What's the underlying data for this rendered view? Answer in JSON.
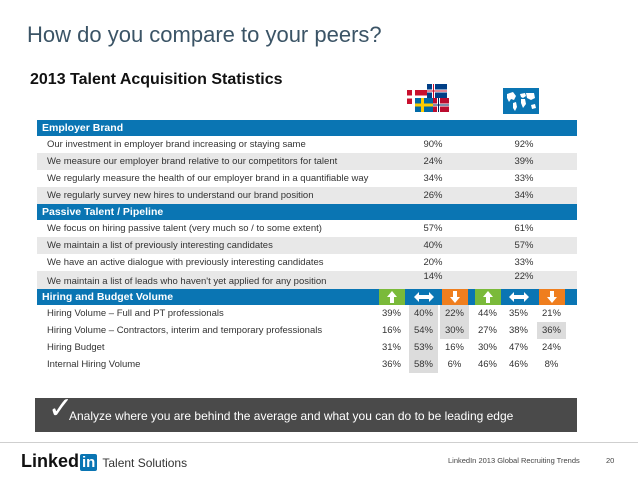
{
  "slide": {
    "title": "How do you compare to your peers?",
    "section_title": "2013 Talent Acquisition Statistics"
  },
  "sections": {
    "employer_brand": {
      "heading": "Employer Brand",
      "rows": [
        {
          "label": "Our investment in employer brand increasing or staying same",
          "nordic": "90%",
          "global": "92%"
        },
        {
          "label": "We measure our employer brand relative to our competitors for talent",
          "nordic": "24%",
          "global": "39%"
        },
        {
          "label": "We regularly measure the health of our employer brand in a quantifiable way",
          "nordic": "34%",
          "global": "33%"
        },
        {
          "label": "We regularly survey new hires to understand our brand position",
          "nordic": "26%",
          "global": "34%"
        }
      ]
    },
    "passive_talent": {
      "heading": "Passive Talent / Pipeline",
      "rows": [
        {
          "label": "We focus on hiring passive talent (very much so / to some extent)",
          "nordic": "57%",
          "global": "61%"
        },
        {
          "label": "We maintain a list of previously interesting candidates",
          "nordic": "40%",
          "global": "57%"
        },
        {
          "label": "We have an active dialogue with previously interesting candidates",
          "nordic": "20%",
          "global": "33%"
        },
        {
          "label": "We maintain a list of leads who haven't yet applied for any position",
          "nordic": "14%",
          "global": "22%"
        }
      ]
    },
    "hiring_budget": {
      "heading": "Hiring and Budget Volume",
      "arrow_icons": [
        "up-arrow-icon",
        "left-right-arrow-icon",
        "down-arrow-icon",
        "up-arrow-icon",
        "left-right-arrow-icon",
        "down-arrow-icon"
      ],
      "rows": [
        {
          "label": "Hiring Volume – Full and PT professionals",
          "values": [
            "39%",
            "40%",
            "22%",
            "44%",
            "35%",
            "21%"
          ]
        },
        {
          "label": "Hiring Volume – Contractors, interim and temporary professionals",
          "values": [
            "16%",
            "54%",
            "30%",
            "27%",
            "38%",
            "36%"
          ]
        },
        {
          "label": "Hiring Budget",
          "values": [
            "31%",
            "53%",
            "16%",
            "30%",
            "47%",
            "24%"
          ]
        },
        {
          "label": "Internal Hiring Volume",
          "values": [
            "36%",
            "58%",
            "6%",
            "46%",
            "46%",
            "8%"
          ]
        }
      ]
    }
  },
  "callout": {
    "text": "Analyze where you are behind the average and what you can do to be leading edge"
  },
  "footer": {
    "logo_text": "Linked",
    "logo_in": "in",
    "logo_sub": "Talent Solutions",
    "source": "LinkedIn 2013 Global Recruiting Trends",
    "page_number": "20"
  },
  "colors": {
    "band_blue": "#0a75b3",
    "arrow_green": "#7aba3a",
    "arrow_orange": "#ef7e1e",
    "callout_bg": "#4a4a4a"
  }
}
